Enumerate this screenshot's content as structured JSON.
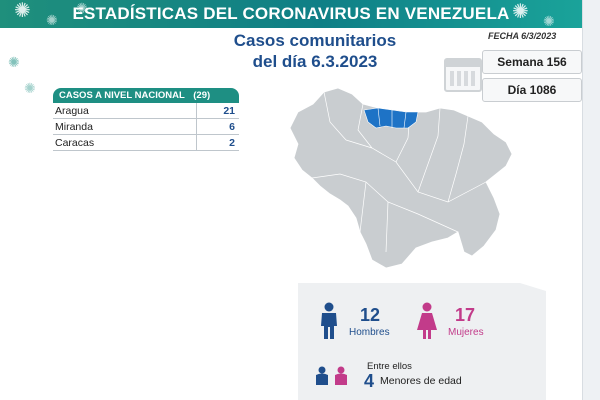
{
  "header": {
    "title": "ESTADÍSTICAS DEL CORONAVIRUS EN VENEZUELA"
  },
  "headline": {
    "line1": "Casos comunitarios",
    "line2": "del día 6.3.2023"
  },
  "fecha": "FECHA 6/3/2023",
  "semana": "Semana 156",
  "dia": "Día 1086",
  "table": {
    "header_label": "CASOS A NIVEL NACIONAL",
    "header_total": "(29)",
    "rows": [
      {
        "name": "Aragua",
        "value": "21"
      },
      {
        "name": "Miranda",
        "value": "6"
      },
      {
        "name": "Caracas",
        "value": "2"
      }
    ]
  },
  "stats": {
    "hombres": {
      "value": "12",
      "label": "Hombres"
    },
    "mujeres": {
      "value": "17",
      "label": "Mujeres"
    },
    "entre_ellos": "Entre ellos",
    "menores": {
      "value": "4",
      "label": "Menores de edad"
    }
  },
  "colors": {
    "teal": "#1e8f83",
    "blue": "#1f4e8c",
    "pink": "#c23b8a",
    "map_gray": "#c9cdd0",
    "highlight": "#1e73c6"
  },
  "icons": [
    "coronavirus-icon",
    "calendar-icon",
    "man-icon",
    "woman-icon",
    "children-icon"
  ]
}
